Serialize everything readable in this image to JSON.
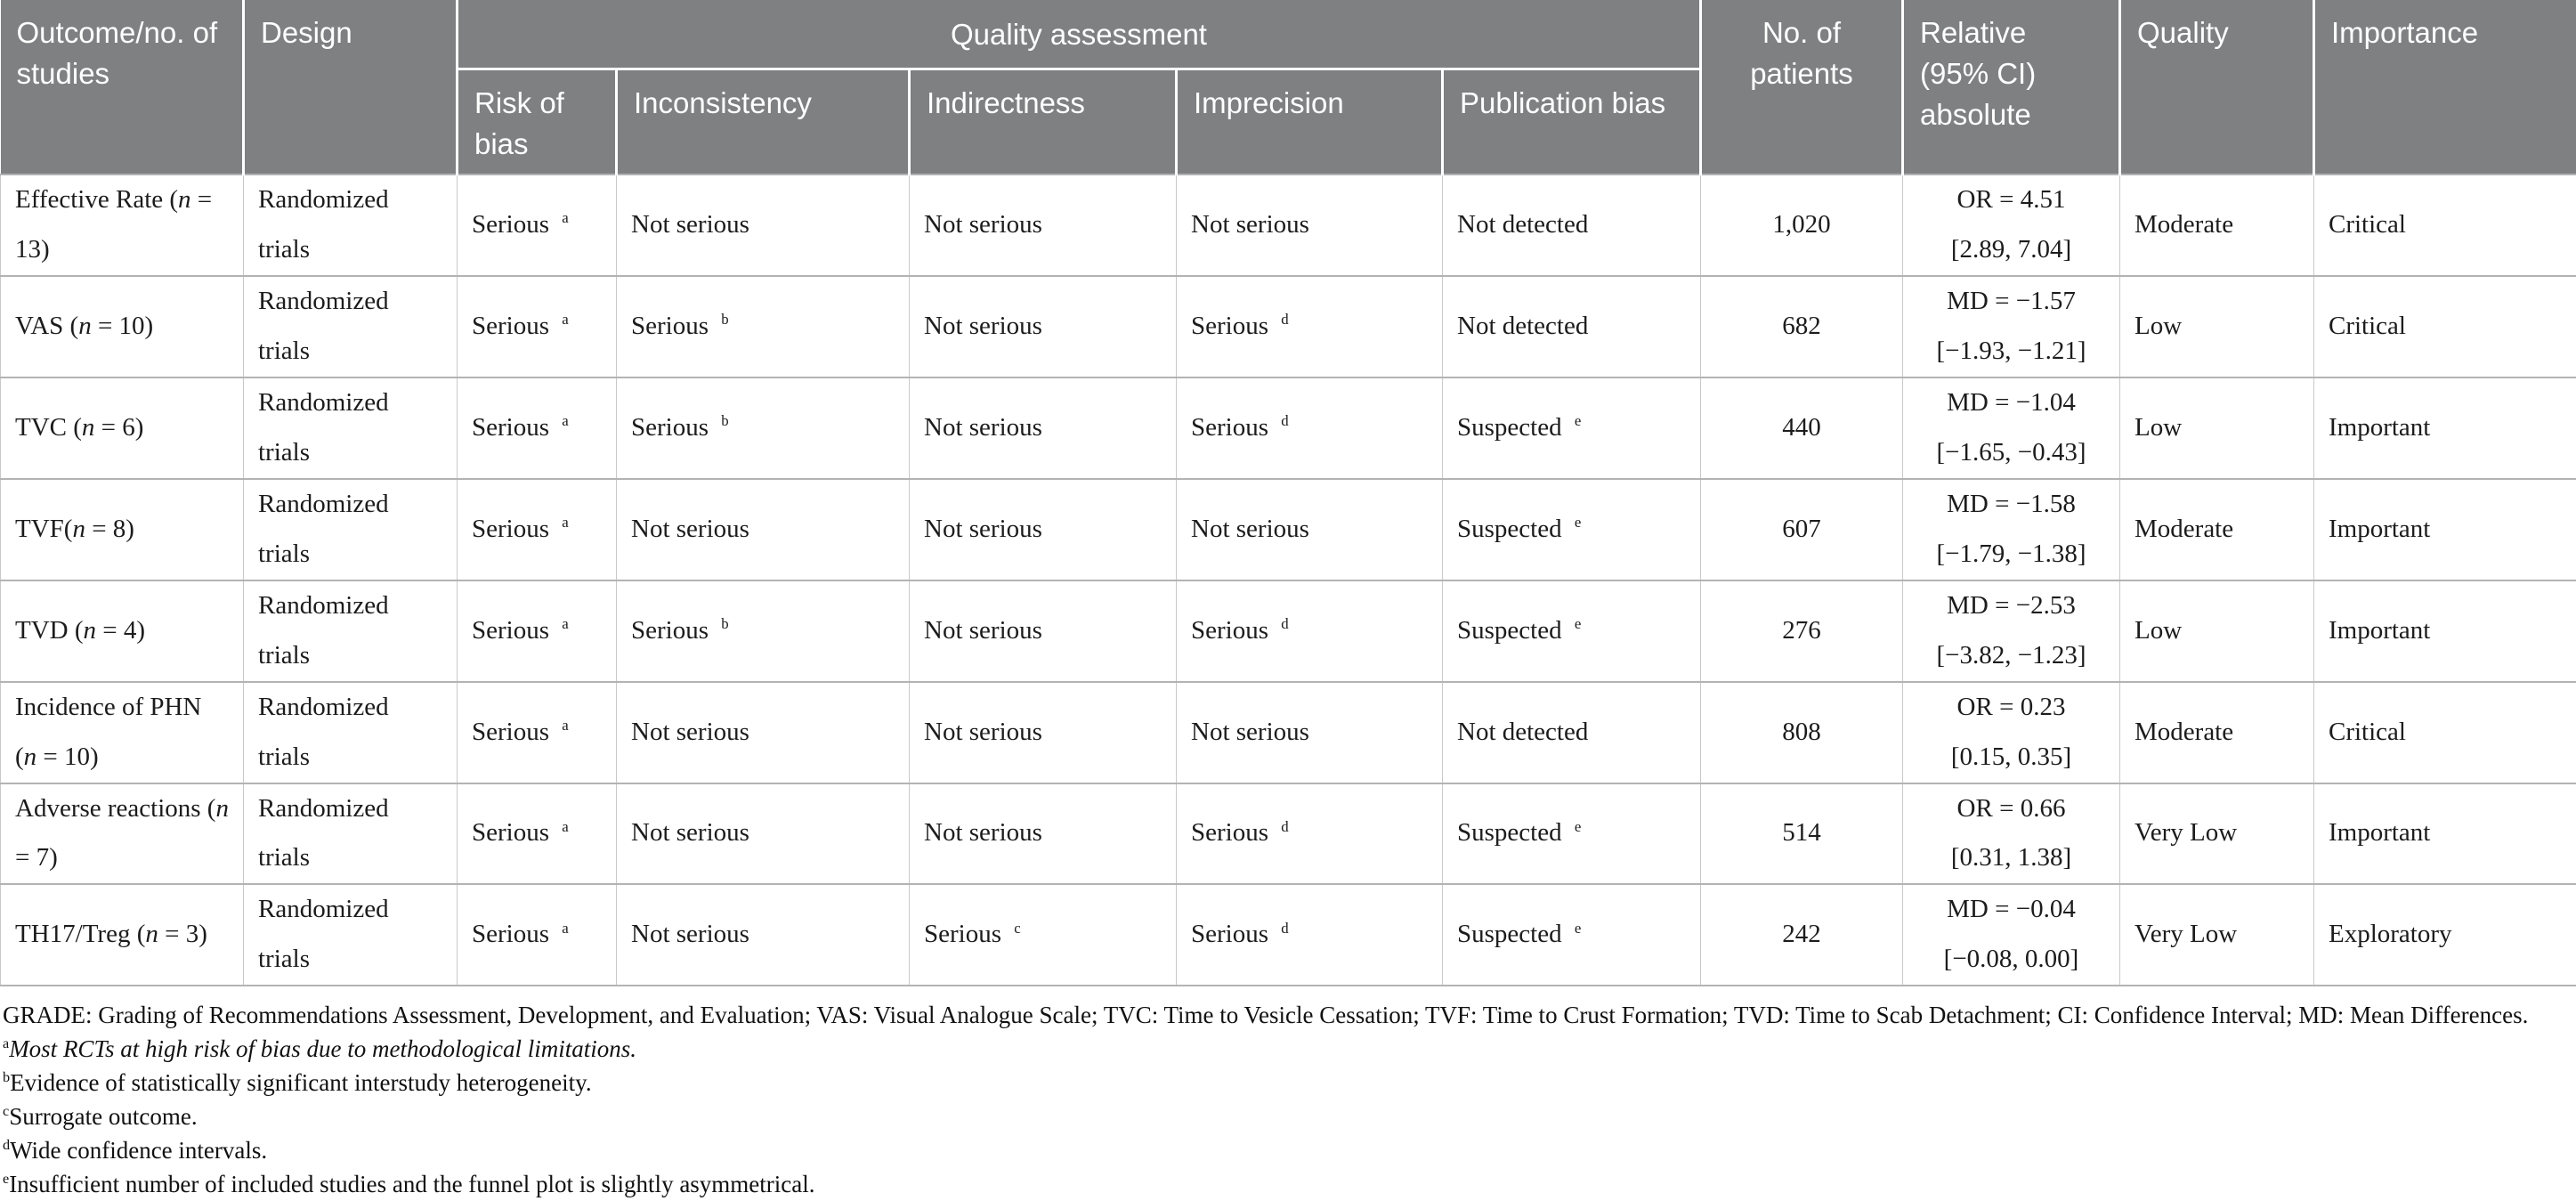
{
  "colors": {
    "header_bg": "#7e8081",
    "header_text": "#ffffff",
    "body_text": "#1c1c1c",
    "grid_line": "#c9c9c9",
    "row_line": "#b3b3b3"
  },
  "table": {
    "header": {
      "outcome": "Outcome/no. of studies",
      "design": "Design",
      "quality_assessment": "Quality assessment",
      "risk_of_bias": "Risk of bias",
      "inconsistency": "Inconsistency",
      "indirectness": "Indirectness",
      "imprecision": "Imprecision",
      "publication_bias": "Publication bias",
      "no_of_patients": "No. of patients",
      "relative": "Relative (95% CI) absolute",
      "quality": "Quality",
      "importance": "Importance"
    },
    "rows": [
      {
        "outcome": "Effective Rate (n = 13)",
        "design": "Randomized trials",
        "risk_of_bias": {
          "label": "Serious",
          "note": "a"
        },
        "inconsistency": {
          "label": "Not serious",
          "note": null
        },
        "indirectness": {
          "label": "Not serious",
          "note": null
        },
        "imprecision": {
          "label": "Not serious",
          "note": null
        },
        "publication_bias": {
          "label": "Not detected",
          "note": null
        },
        "patients": "1,020",
        "relative_estimate": "OR = 4.51",
        "relative_ci": "[2.89, 7.04]",
        "quality": "Moderate",
        "importance": "Critical"
      },
      {
        "outcome": "VAS (n = 10)",
        "design": "Randomized trials",
        "risk_of_bias": {
          "label": "Serious",
          "note": "a"
        },
        "inconsistency": {
          "label": "Serious",
          "note": "b"
        },
        "indirectness": {
          "label": "Not serious",
          "note": null
        },
        "imprecision": {
          "label": "Serious",
          "note": "d"
        },
        "publication_bias": {
          "label": "Not detected",
          "note": null
        },
        "patients": "682",
        "relative_estimate": "MD = −1.57",
        "relative_ci": "[−1.93, −1.21]",
        "quality": "Low",
        "importance": "Critical"
      },
      {
        "outcome": "TVC (n = 6)",
        "design": "Randomized trials",
        "risk_of_bias": {
          "label": "Serious",
          "note": "a"
        },
        "inconsistency": {
          "label": "Serious",
          "note": "b"
        },
        "indirectness": {
          "label": "Not serious",
          "note": null
        },
        "imprecision": {
          "label": "Serious",
          "note": "d"
        },
        "publication_bias": {
          "label": "Suspected",
          "note": "e"
        },
        "patients": "440",
        "relative_estimate": "MD = −1.04",
        "relative_ci": "[−1.65, −0.43]",
        "quality": "Low",
        "importance": "Important"
      },
      {
        "outcome": "TVF(n = 8)",
        "design": "Randomized trials",
        "risk_of_bias": {
          "label": "Serious",
          "note": "a"
        },
        "inconsistency": {
          "label": "Not serious",
          "note": null
        },
        "indirectness": {
          "label": "Not serious",
          "note": null
        },
        "imprecision": {
          "label": "Not serious",
          "note": null
        },
        "publication_bias": {
          "label": "Suspected",
          "note": "e"
        },
        "patients": "607",
        "relative_estimate": "MD = −1.58",
        "relative_ci": "[−1.79, −1.38]",
        "quality": "Moderate",
        "importance": "Important"
      },
      {
        "outcome": "TVD (n = 4)",
        "design": "Randomized trials",
        "risk_of_bias": {
          "label": "Serious",
          "note": "a"
        },
        "inconsistency": {
          "label": "Serious",
          "note": "b"
        },
        "indirectness": {
          "label": "Not serious",
          "note": null
        },
        "imprecision": {
          "label": "Serious",
          "note": "d"
        },
        "publication_bias": {
          "label": "Suspected",
          "note": "e"
        },
        "patients": "276",
        "relative_estimate": "MD = −2.53",
        "relative_ci": "[−3.82, −1.23]",
        "quality": "Low",
        "importance": "Important"
      },
      {
        "outcome": "Incidence of PHN (n = 10)",
        "design": "Randomized trials",
        "risk_of_bias": {
          "label": "Serious",
          "note": "a"
        },
        "inconsistency": {
          "label": "Not serious",
          "note": null
        },
        "indirectness": {
          "label": "Not serious",
          "note": null
        },
        "imprecision": {
          "label": "Not serious",
          "note": null
        },
        "publication_bias": {
          "label": "Not detected",
          "note": null
        },
        "patients": "808",
        "relative_estimate": "OR = 0.23",
        "relative_ci": "[0.15, 0.35]",
        "quality": "Moderate",
        "importance": "Critical"
      },
      {
        "outcome": "Adverse reactions (n = 7)",
        "design": "Randomized trials",
        "risk_of_bias": {
          "label": "Serious",
          "note": "a"
        },
        "inconsistency": {
          "label": "Not serious",
          "note": null
        },
        "indirectness": {
          "label": "Not serious",
          "note": null
        },
        "imprecision": {
          "label": "Serious",
          "note": "d"
        },
        "publication_bias": {
          "label": "Suspected",
          "note": "e"
        },
        "patients": "514",
        "relative_estimate": "OR = 0.66",
        "relative_ci": "[0.31, 1.38]",
        "quality": "Very Low",
        "importance": "Important"
      },
      {
        "outcome": "TH17/Treg (n = 3)",
        "design": "Randomized trials",
        "risk_of_bias": {
          "label": "Serious",
          "note": "a"
        },
        "inconsistency": {
          "label": "Not serious",
          "note": null
        },
        "indirectness": {
          "label": "Serious",
          "note": "c"
        },
        "imprecision": {
          "label": "Serious",
          "note": "d"
        },
        "publication_bias": {
          "label": "Suspected",
          "note": "e"
        },
        "patients": "242",
        "relative_estimate": "MD = −0.04",
        "relative_ci": "[−0.08, 0.00]",
        "quality": "Very Low",
        "importance": "Exploratory"
      }
    ]
  },
  "footnotes": [
    {
      "marker": "",
      "text": "GRADE: Grading of Recommendations Assessment, Development, and Evaluation; VAS: Visual Analogue Scale; TVC: Time to Vesicle Cessation; TVF: Time to Crust Formation; TVD: Time to Scab Detachment; CI: Confidence Interval; MD: Mean Differences."
    },
    {
      "marker": "a",
      "text": "Most RCTs at high risk of bias due to methodological limitations."
    },
    {
      "marker": "b",
      "text": "Evidence of statistically significant interstudy heterogeneity."
    },
    {
      "marker": "c",
      "text": "Surrogate outcome."
    },
    {
      "marker": "d",
      "text": "Wide confidence intervals."
    },
    {
      "marker": "e",
      "text": "Insufficient number of included studies and the funnel plot is slightly asymmetrical."
    }
  ]
}
